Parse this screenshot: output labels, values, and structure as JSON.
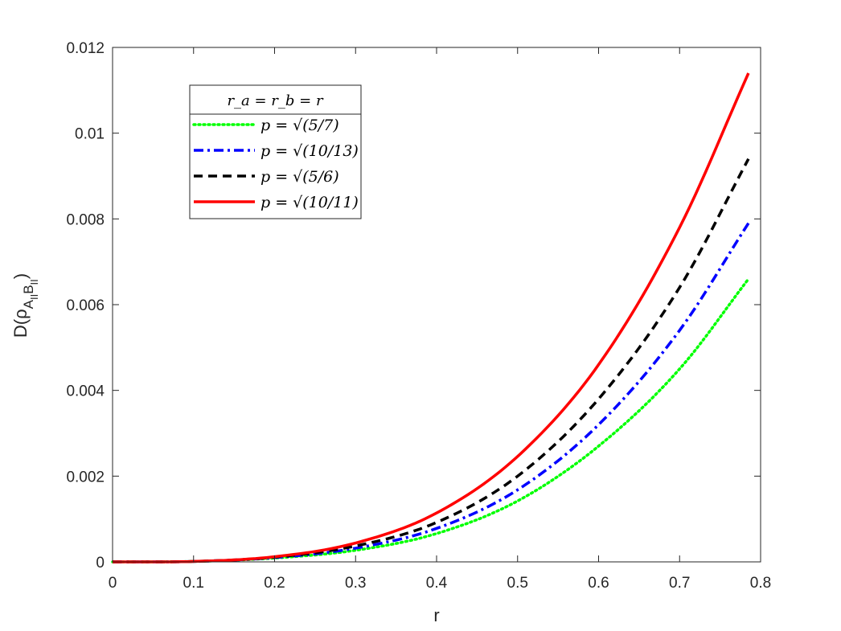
{
  "chart_data": {
    "type": "line",
    "xlabel": "r",
    "ylabel": "D(ρ",
    "ylabel_sub": "A",
    "ylabel_subsub": "II",
    "ylabel_sub2": "B",
    "ylabel_subsub2": "II",
    "ylabel_close": ")",
    "xlim": [
      0,
      0.8
    ],
    "ylim": [
      0,
      0.012
    ],
    "x_ticks": [
      "0",
      "0.1",
      "0.2",
      "0.3",
      "0.4",
      "0.5",
      "0.6",
      "0.7",
      "0.8"
    ],
    "y_ticks": [
      "0",
      "0.002",
      "0.004",
      "0.006",
      "0.008",
      "0.01",
      "0.012"
    ],
    "grid": false,
    "legend_title": "r_a = r_b = r",
    "legend_position": "top-left",
    "x": [
      0,
      0.1,
      0.2,
      0.3,
      0.4,
      0.5,
      0.6,
      0.7,
      0.785
    ],
    "series": [
      {
        "name": "p = √(5/7)",
        "color": "#00ff00",
        "dash": "dotted",
        "values": [
          0,
          1e-05,
          9e-05,
          0.00027,
          0.00066,
          0.00142,
          0.0027,
          0.0045,
          0.0066
        ]
      },
      {
        "name": "p = √(10/13)",
        "color": "#0000ff",
        "dash": "dashdot",
        "values": [
          0,
          1e-05,
          0.0001,
          0.00032,
          0.00078,
          0.00168,
          0.0032,
          0.0054,
          0.0079
        ]
      },
      {
        "name": "p = √(5/6)",
        "color": "#000000",
        "dash": "dashed",
        "values": [
          0,
          1e-05,
          0.00011,
          0.00037,
          0.00092,
          0.002,
          0.0038,
          0.0064,
          0.0094
        ]
      },
      {
        "name": "p = √(10/11)",
        "color": "#ff0000",
        "dash": "solid",
        "values": [
          0,
          1e-05,
          0.00012,
          0.00044,
          0.00114,
          0.00246,
          0.0046,
          0.0078,
          0.0114
        ]
      }
    ]
  }
}
